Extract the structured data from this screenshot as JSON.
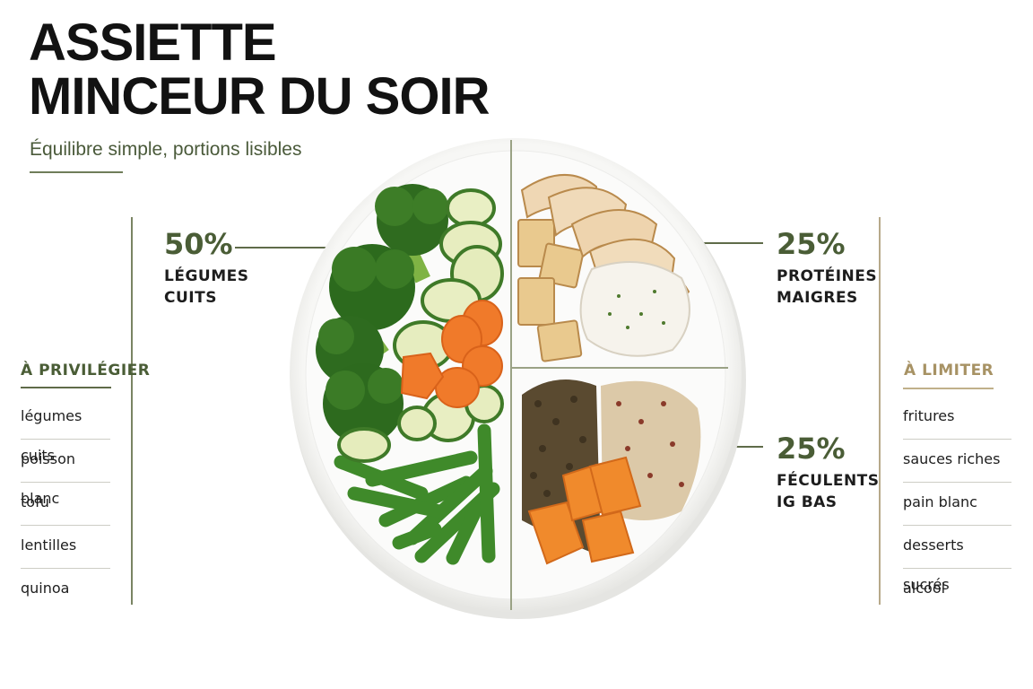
{
  "header": {
    "title_line1": "ASSIETTE",
    "title_line2": "MINCEUR DU SOIR",
    "subtitle": "Équilibre simple, portions lisibles"
  },
  "portions": [
    {
      "value": "50%",
      "label_line1": "LÉGUMES",
      "label_line2": "CUITS",
      "fraction": 0.5
    },
    {
      "value": "25%",
      "label_line1": "PROTÉINES",
      "label_line2": "MAIGRES",
      "fraction": 0.25
    },
    {
      "value": "25%",
      "label_line1": "FÉCULENTS",
      "label_line2": "IG BAS",
      "fraction": 0.25
    }
  ],
  "favor": {
    "heading": "À PRIVILÉGIER",
    "items": [
      "légumes cuits",
      "poisson blanc",
      "tofu",
      "lentilles",
      "quinoa"
    ]
  },
  "limit": {
    "heading": "À LIMITER",
    "items": [
      "fritures",
      "sauces riches",
      "pain blanc",
      "desserts sucrés",
      "alcool"
    ]
  },
  "colors": {
    "accent_green": "#4a5d36",
    "accent_gold": "#a79264",
    "title": "#121212"
  }
}
